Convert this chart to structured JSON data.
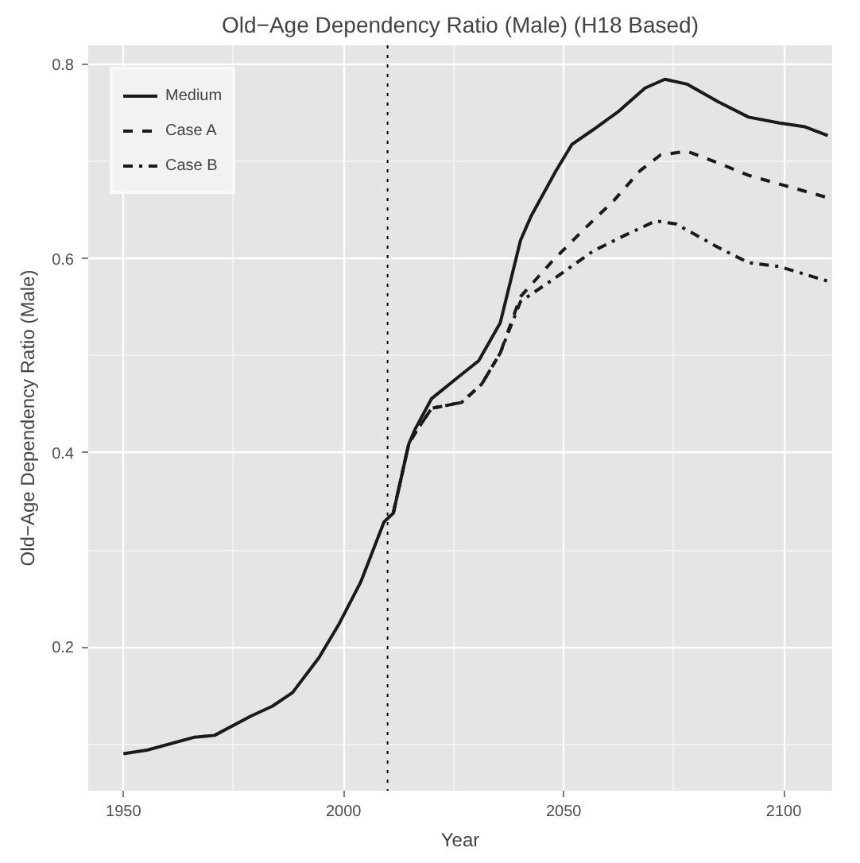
{
  "chart_data": {
    "type": "line",
    "title": "Old−Age Dependency Ratio (Male) (H18 Based)",
    "xlabel": "Year",
    "ylabel": "Old−Age Dependency Ratio (Male)",
    "xlim": [
      1942,
      2111
    ],
    "ylim": [
      0.052,
      0.82
    ],
    "xticks": [
      1950,
      2000,
      2050,
      2100
    ],
    "yticks": [
      0.2,
      0.4,
      0.6,
      0.8
    ],
    "grid": true,
    "legend": "top left",
    "marker": "none",
    "ref_lines": [
      {
        "axis": "x",
        "value": 2010,
        "color": "#000000",
        "line_style": "dotted"
      }
    ],
    "series": [
      {
        "name": "Medium",
        "color": "#1a1a1a",
        "line_style": "solid",
        "x": [
          1950,
          1955.5,
          1966,
          1970.7,
          1979,
          1983.8,
          1988.4,
          1994.4,
          1999,
          2003.9,
          2009.2,
          2011.3,
          2014.8,
          2016.2,
          2020,
          2026,
          2030.7,
          2035.6,
          2040.2,
          2042.6,
          2048.3,
          2051.9,
          2056.7,
          2062.5,
          2068.5,
          2073,
          2078,
          2085,
          2092,
          2099,
          2104.8,
          2110
        ],
        "values": [
          0.09,
          0.094,
          0.107,
          0.109,
          0.129,
          0.139,
          0.153,
          0.189,
          0.224,
          0.267,
          0.329,
          0.338,
          0.409,
          0.424,
          0.456,
          0.478,
          0.495,
          0.534,
          0.619,
          0.644,
          0.691,
          0.718,
          0.733,
          0.752,
          0.776,
          0.785,
          0.78,
          0.762,
          0.746,
          0.74,
          0.736,
          0.727
        ]
      },
      {
        "name": "Case A",
        "color": "#1a1a1a",
        "line_style": "dashed",
        "x": [
          2011.3,
          2014.8,
          2016.2,
          2020,
          2026.8,
          2031.4,
          2035.6,
          2040.2,
          2047.3,
          2054.3,
          2061.4,
          2067.4,
          2072,
          2078,
          2085,
          2092,
          2099,
          2110
        ],
        "values": [
          0.338,
          0.409,
          0.42,
          0.446,
          0.452,
          0.471,
          0.503,
          0.561,
          0.597,
          0.629,
          0.66,
          0.691,
          0.707,
          0.711,
          0.699,
          0.686,
          0.677,
          0.663
        ]
      },
      {
        "name": "Case B",
        "color": "#1a1a1a",
        "line_style": "dashdot",
        "x": [
          2011.3,
          2014.8,
          2016.2,
          2020,
          2026.8,
          2031.4,
          2035.6,
          2040.2,
          2048.3,
          2056.7,
          2063.8,
          2070.9,
          2075.5,
          2085,
          2092,
          2099,
          2110
        ],
        "values": [
          0.338,
          0.409,
          0.42,
          0.446,
          0.452,
          0.471,
          0.503,
          0.556,
          0.581,
          0.608,
          0.624,
          0.639,
          0.636,
          0.612,
          0.596,
          0.592,
          0.577
        ]
      }
    ]
  }
}
